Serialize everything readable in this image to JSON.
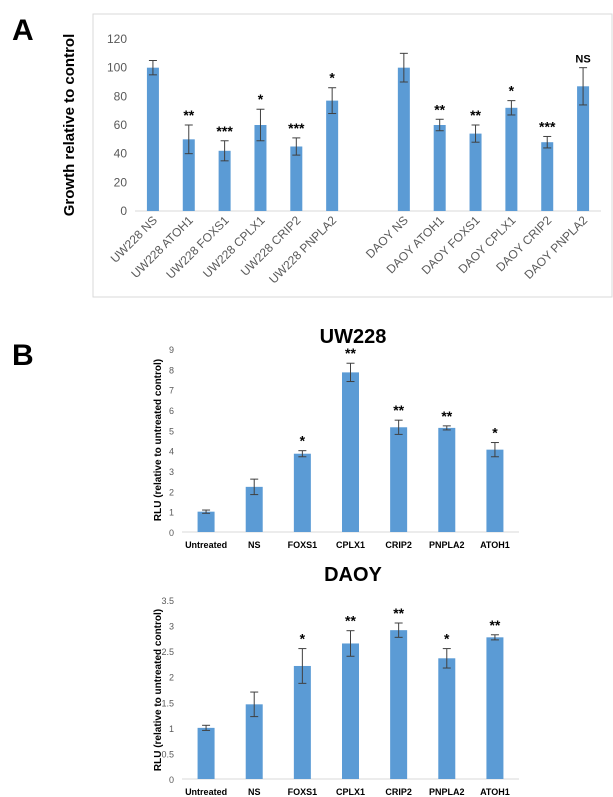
{
  "panels": {
    "a": "A",
    "b": "B"
  },
  "chart_data": [
    {
      "type": "bar",
      "title": "",
      "xlabel": "",
      "ylabel": "Growth relative to control",
      "ylim": [
        0,
        120
      ],
      "yticks": [
        "0",
        "20",
        "40",
        "60",
        "80",
        "100",
        "120"
      ],
      "grid": false,
      "color": "#5b9bd5",
      "categories": [
        "UW228 NS",
        "UW228 ATOH1",
        "UW228 FOXS1",
        "UW228 CPLX1",
        "UW228 CRIP2",
        "UW228 PNPLA2",
        "",
        "DAOY NS",
        "DAOY ATOH1",
        "DAOY FOXS1",
        "DAOY CPLX1",
        "DAOY CRIP2",
        "DAOY PNPLA2"
      ],
      "values": [
        100,
        50,
        42,
        60,
        45,
        77,
        null,
        100,
        60,
        54,
        72,
        48,
        87
      ],
      "errors": [
        5,
        10,
        7,
        11,
        6,
        9,
        null,
        10,
        4,
        6,
        5,
        4,
        13
      ],
      "annotations": [
        "",
        "**",
        "***",
        "*",
        "***",
        "*",
        "",
        "",
        "**",
        "**",
        "*",
        "***",
        "NS"
      ]
    },
    {
      "type": "bar",
      "title": "UW228",
      "xlabel": "",
      "ylabel": "RLU (relative to untreated control)",
      "ylim": [
        0,
        9
      ],
      "yticks": [
        "0",
        "1",
        "2",
        "3",
        "4",
        "5",
        "6",
        "7",
        "8",
        "9"
      ],
      "grid": false,
      "color": "#5b9bd5",
      "categories": [
        "Untreated",
        "NS",
        "FOXS1",
        "CPLX1",
        "CRIP2",
        "PNPLA2",
        "ATOH1"
      ],
      "values": [
        1.0,
        2.22,
        3.85,
        7.85,
        5.15,
        5.12,
        4.05
      ],
      "errors": [
        0.08,
        0.38,
        0.15,
        0.45,
        0.35,
        0.1,
        0.35
      ],
      "annotations": [
        "",
        "",
        "*",
        "**",
        "**",
        "**",
        "*"
      ]
    },
    {
      "type": "bar",
      "title": "DAOY",
      "xlabel": "",
      "ylabel": "RLU (relative to untreated control)",
      "ylim": [
        0,
        3.5
      ],
      "yticks": [
        "0",
        "0.5",
        "1",
        "1.5",
        "2",
        "2.5",
        "3",
        "3.5"
      ],
      "grid": false,
      "color": "#5b9bd5",
      "categories": [
        "Untreated",
        "NS",
        "FOXS1",
        "CPLX1",
        "CRIP2",
        "PNPLA2",
        "ATOH1"
      ],
      "values": [
        1.0,
        1.46,
        2.21,
        2.65,
        2.91,
        2.36,
        2.77
      ],
      "errors": [
        0.05,
        0.24,
        0.34,
        0.25,
        0.14,
        0.19,
        0.05
      ],
      "annotations": [
        "",
        "",
        "*",
        "**",
        "**",
        "*",
        "**"
      ]
    }
  ]
}
